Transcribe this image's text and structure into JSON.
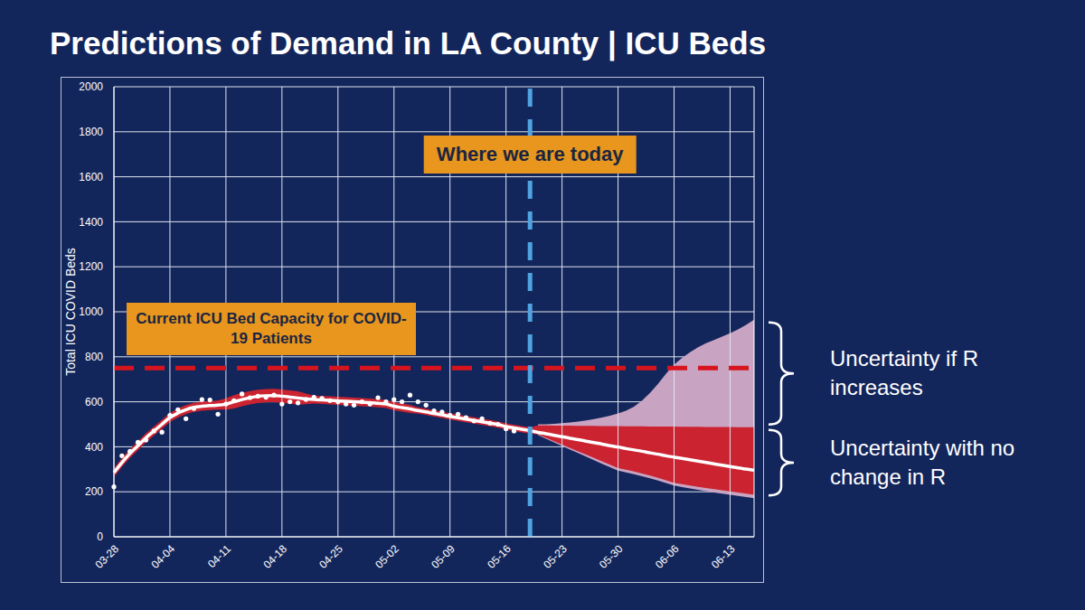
{
  "chart_data": {
    "type": "line",
    "title": "Predictions of Demand in LA County | ICU Beds",
    "y_label": "Total ICU COVID Beds",
    "categories": [
      "03-28",
      null,
      null,
      null,
      null,
      null,
      null,
      "04-04",
      null,
      null,
      null,
      null,
      null,
      null,
      "04-11",
      null,
      null,
      null,
      null,
      null,
      null,
      "04-18",
      null,
      null,
      null,
      null,
      null,
      null,
      "04-25",
      null,
      null,
      null,
      null,
      null,
      null,
      "05-02",
      null,
      null,
      null,
      null,
      null,
      null,
      "05-09",
      null,
      null,
      null,
      null,
      null,
      null,
      "05-16",
      null,
      null,
      null,
      null,
      null,
      null,
      "05-23",
      null,
      null,
      null,
      null,
      null,
      null,
      "05-30",
      null,
      null,
      null,
      null,
      null,
      null,
      "06-06",
      null,
      null,
      null,
      null,
      null,
      null,
      "06-13",
      null,
      null,
      null
    ],
    "series": [
      {
        "type": "area",
        "name": "Uncertainty if R increases",
        "color": "#c9a3c2",
        "low": [
          null,
          null,
          null,
          null,
          null,
          null,
          null,
          null,
          null,
          null,
          null,
          null,
          null,
          null,
          null,
          null,
          null,
          null,
          null,
          null,
          null,
          null,
          null,
          null,
          null,
          null,
          null,
          null,
          null,
          null,
          null,
          null,
          null,
          null,
          null,
          null,
          null,
          null,
          null,
          null,
          null,
          null,
          null,
          null,
          null,
          null,
          null,
          null,
          null,
          null,
          null,
          null,
          null,
          452,
          436,
          420,
          404,
          388,
          372,
          356,
          340,
          324,
          309,
          294,
          286,
          278,
          269,
          260,
          250,
          239,
          228,
          221,
          215,
          209,
          203,
          197,
          192,
          187,
          182,
          177,
          172
        ],
        "high": [
          null,
          null,
          null,
          null,
          null,
          null,
          null,
          null,
          null,
          null,
          null,
          null,
          null,
          null,
          null,
          null,
          null,
          null,
          null,
          null,
          null,
          null,
          null,
          null,
          null,
          null,
          null,
          null,
          null,
          null,
          null,
          null,
          null,
          null,
          null,
          null,
          null,
          null,
          null,
          null,
          null,
          null,
          null,
          null,
          null,
          null,
          null,
          null,
          null,
          null,
          null,
          null,
          null,
          500,
          500,
          502,
          505,
          508,
          512,
          517,
          523,
          530,
          538,
          548,
          560,
          578,
          605,
          640,
          680,
          725,
          765,
          795,
          820,
          842,
          860,
          875,
          890,
          905,
          922,
          942,
          965
        ]
      },
      {
        "type": "area",
        "name": "Uncertainty with no change in R",
        "color": "#cc2330",
        "low": [
          265,
          310,
          350,
          385,
          420,
          450,
          480,
          510,
          530,
          545,
          555,
          560,
          563,
          565,
          565,
          570,
          580,
          588,
          594,
          597,
          598,
          595,
          591,
          587,
          589,
          592,
          590,
          588,
          586,
          584,
          582,
          580,
          578,
          575,
          572,
          562,
          556,
          550,
          547,
          541,
          534,
          528,
          521,
          515,
          509,
          503,
          497,
          491,
          485,
          476,
          470,
          464,
          458,
          455,
          440,
          425,
          410,
          395,
          380,
          365,
          350,
          335,
          320,
          305,
          298,
          290,
          281,
          272,
          262,
          251,
          240,
          234,
          228,
          222,
          217,
          212,
          207,
          202,
          197,
          192,
          187
        ],
        "high": [
          305,
          350,
          390,
          425,
          460,
          490,
          520,
          550,
          570,
          585,
          595,
          600,
          603,
          605,
          615,
          630,
          640,
          648,
          654,
          657,
          658,
          655,
          651,
          647,
          637,
          628,
          626,
          624,
          622,
          620,
          618,
          616,
          614,
          611,
          608,
          598,
          592,
          586,
          575,
          569,
          562,
          556,
          549,
          543,
          537,
          531,
          525,
          519,
          513,
          504,
          498,
          492,
          486,
          495,
          495,
          494,
          494,
          494,
          493,
          493,
          493,
          492,
          492,
          492,
          491,
          491,
          491,
          490,
          490,
          490,
          490,
          489,
          489,
          489,
          488,
          488,
          488,
          488,
          487,
          487,
          487
        ]
      },
      {
        "type": "line",
        "color": "#ffffff",
        "values": [
          285,
          330,
          370,
          405,
          440,
          470,
          500,
          530,
          550,
          565,
          575,
          580,
          583,
          585,
          590,
          600,
          610,
          618,
          624,
          627,
          628,
          625,
          621,
          617,
          613,
          610,
          608,
          606,
          604,
          602,
          600,
          598,
          596,
          593,
          590,
          580,
          574,
          568,
          561,
          555,
          548,
          542,
          535,
          529,
          523,
          517,
          511,
          505,
          499,
          490,
          484,
          478,
          472,
          464,
          458,
          451,
          445,
          438,
          432,
          425,
          419,
          412,
          405,
          399,
          392,
          386,
          380,
          373,
          367,
          360,
          354,
          348,
          342,
          336,
          330,
          324,
          318,
          312,
          306,
          301,
          296
        ]
      },
      {
        "type": "scatter",
        "color": "#ffffff",
        "marker": "circle",
        "values": [
          222,
          360,
          380,
          420,
          430,
          470,
          465,
          540,
          565,
          525,
          570,
          610,
          608,
          545,
          590,
          605,
          635,
          618,
          625,
          620,
          630,
          590,
          600,
          595,
          610,
          620,
          615,
          605,
          600,
          590,
          585,
          600,
          590,
          618,
          600,
          610,
          600,
          630,
          600,
          585,
          560,
          555,
          540,
          545,
          530,
          515,
          525,
          505,
          500,
          480,
          470,
          null,
          null,
          null,
          null,
          null,
          null,
          null,
          null,
          null,
          null,
          null,
          null,
          null,
          null,
          null,
          null,
          null,
          null,
          null,
          null,
          null,
          null,
          null,
          null,
          null,
          null,
          null,
          null,
          null,
          null
        ]
      }
    ],
    "ylim": [
      0,
      2000
    ],
    "yticks": [
      0,
      200,
      400,
      600,
      800,
      1000,
      1200,
      1400,
      1600,
      1800,
      2000
    ],
    "grid": true,
    "annotations": [
      {
        "text": "Current ICU Bed Capacity for COVID-19 Patients",
        "y": 750,
        "color": "#d7141e",
        "line_style": "dashed"
      },
      {
        "text": "Where we are today",
        "x": 52,
        "color": "#4fa3e0",
        "line_style": "dashed"
      }
    ]
  }
}
